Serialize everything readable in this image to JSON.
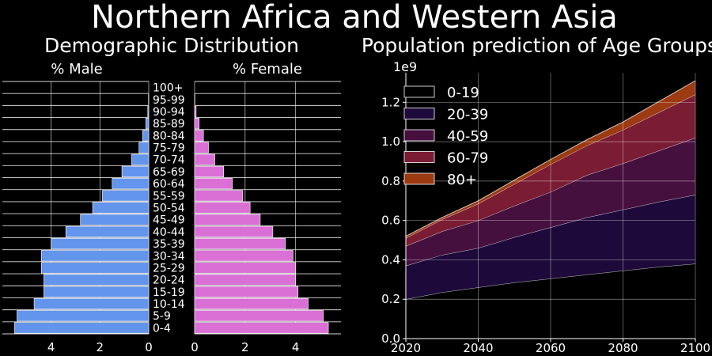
{
  "figure_title": "Northern Africa and Western Asia",
  "chart_data": [
    {
      "type": "bar",
      "orientation": "horizontal",
      "title": "Demographic Distribution",
      "categories": [
        "0-4",
        "5-9",
        "10-14",
        "15-19",
        "20-24",
        "25-29",
        "30-34",
        "35-39",
        "40-44",
        "45-49",
        "50-54",
        "55-59",
        "60-64",
        "65-69",
        "70-74",
        "75-79",
        "80-84",
        "85-89",
        "90-94",
        "95-99",
        "100+"
      ],
      "male": {
        "label": "% Male",
        "color": "#6495ed",
        "values": [
          5.5,
          5.4,
          4.7,
          4.3,
          4.3,
          4.4,
          4.4,
          4.0,
          3.4,
          2.8,
          2.3,
          1.9,
          1.5,
          1.1,
          0.7,
          0.4,
          0.25,
          0.12,
          0.04,
          0.01,
          0.0
        ],
        "xlim": [
          6.0,
          0
        ],
        "xticks": [
          "4",
          "2",
          "0"
        ],
        "xtick_values": [
          4,
          2,
          0
        ]
      },
      "female": {
        "label": "% Female",
        "color": "#da70d6",
        "values": [
          5.3,
          5.1,
          4.5,
          4.1,
          4.0,
          4.0,
          3.9,
          3.6,
          3.1,
          2.6,
          2.2,
          1.9,
          1.5,
          1.15,
          0.8,
          0.55,
          0.35,
          0.18,
          0.06,
          0.01,
          0.0
        ],
        "xlim": [
          0,
          5.8
        ],
        "xticks": [
          "0",
          "2",
          "4"
        ],
        "xtick_values": [
          0,
          2,
          4
        ]
      },
      "grid": true
    },
    {
      "type": "area",
      "stacked": true,
      "title": "Population prediction of Age Groups",
      "x": [
        2020,
        2030,
        2040,
        2050,
        2060,
        2070,
        2080,
        2090,
        2100
      ],
      "series": [
        {
          "name": "0-19",
          "color": "#000000",
          "values": [
            0.2,
            0.235,
            0.26,
            0.285,
            0.305,
            0.325,
            0.345,
            0.365,
            0.38
          ]
        },
        {
          "name": "20-39",
          "color": "#1d0a3a",
          "values": [
            0.17,
            0.19,
            0.2,
            0.23,
            0.26,
            0.29,
            0.31,
            0.33,
            0.35
          ]
        },
        {
          "name": "40-59",
          "color": "#46103e",
          "values": [
            0.1,
            0.12,
            0.14,
            0.16,
            0.18,
            0.215,
            0.235,
            0.26,
            0.29
          ]
        },
        {
          "name": "60-79",
          "color": "#7a1c33",
          "values": [
            0.04,
            0.06,
            0.085,
            0.11,
            0.14,
            0.15,
            0.17,
            0.195,
            0.22
          ]
        },
        {
          "name": "80+",
          "color": "#9c3a12",
          "values": [
            0.01,
            0.01,
            0.015,
            0.02,
            0.025,
            0.03,
            0.04,
            0.055,
            0.07
          ]
        }
      ],
      "xlim": [
        2020,
        2100
      ],
      "ylim": [
        0,
        1.35
      ],
      "xticks": [
        "2020",
        "2040",
        "2060",
        "2080",
        "2100"
      ],
      "xtick_values": [
        2020,
        2040,
        2060,
        2080,
        2100
      ],
      "yticks": [
        "0.0",
        "0.2",
        "0.4",
        "0.6",
        "0.8",
        "1.0",
        "1.2"
      ],
      "ytick_values": [
        0,
        0.2,
        0.4,
        0.6,
        0.8,
        1.0,
        1.2
      ],
      "y_offset_label": "1e9",
      "legend": "top-left",
      "grid": true
    }
  ]
}
